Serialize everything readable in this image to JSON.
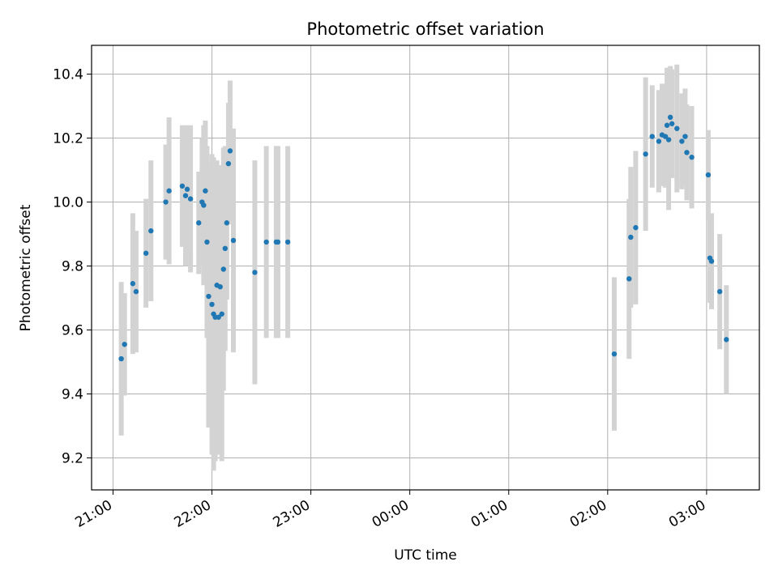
{
  "chart_data": {
    "type": "scatter",
    "title": "Photometric offset variation",
    "xlabel": "UTC time",
    "ylabel": "Photometric offset",
    "x_ticks": [
      "21:00",
      "22:00",
      "23:00",
      "00:00",
      "01:00",
      "02:00",
      "03:00"
    ],
    "y_ticks": [
      "9.2",
      "9.4",
      "9.6",
      "9.8",
      "10.0",
      "10.2",
      "10.4"
    ],
    "xlim": [
      "20:47",
      "03:32"
    ],
    "ylim": [
      9.1,
      10.49
    ],
    "grid": true,
    "colors": {
      "point": "#1f77b4",
      "errorbar": "#d3d3d3",
      "grid": "#b0b0b0"
    },
    "series": [
      {
        "x": [
          "21:05",
          "21:07",
          "21:12",
          "21:14",
          "21:20",
          "21:23",
          "21:32",
          "21:34",
          "21:42",
          "21:44",
          "21:45",
          "21:47",
          "21:52",
          "21:54",
          "21:55",
          "21:56",
          "21:57",
          "21:58",
          "22:00",
          "22:01",
          "22:02",
          "22:03",
          "22:04",
          "22:05",
          "22:06",
          "22:07",
          "22:08",
          "22:09",
          "22:10",
          "22:11",
          "22:13",
          "22:26",
          "22:33",
          "22:39",
          "22:40",
          "22:46",
          "02:04",
          "02:13",
          "02:14",
          "02:17",
          "02:23",
          "02:27",
          "02:31",
          "02:33",
          "02:35",
          "02:36",
          "02:37",
          "02:38",
          "02:39",
          "02:42",
          "02:45",
          "02:47",
          "02:48",
          "02:51",
          "03:01",
          "03:02",
          "03:03",
          "03:08",
          "03:12"
        ],
        "y": [
          9.51,
          9.555,
          9.745,
          9.72,
          9.84,
          9.91,
          10.0,
          10.035,
          10.05,
          10.02,
          10.04,
          10.01,
          9.935,
          10.0,
          9.99,
          10.035,
          9.875,
          9.705,
          9.68,
          9.65,
          9.64,
          9.74,
          9.64,
          9.735,
          9.65,
          9.79,
          9.855,
          9.935,
          10.12,
          10.16,
          9.88,
          9.78,
          9.875,
          9.875,
          9.875,
          9.875,
          9.525,
          9.76,
          9.89,
          9.92,
          10.15,
          10.205,
          10.19,
          10.21,
          10.205,
          10.24,
          10.195,
          10.265,
          10.245,
          10.23,
          10.19,
          10.205,
          10.155,
          10.14,
          10.085,
          9.825,
          9.815,
          9.72,
          9.57
        ],
        "err": [
          0.24,
          0.16,
          0.22,
          0.19,
          0.17,
          0.22,
          0.18,
          0.23,
          0.19,
          0.22,
          0.2,
          0.23,
          0.16,
          0.2,
          0.25,
          0.22,
          0.3,
          0.41,
          0.47,
          0.49,
          0.45,
          0.39,
          0.43,
          0.38,
          0.46,
          0.38,
          0.32,
          0.24,
          0.19,
          0.22,
          0.35,
          0.35,
          0.3,
          0.3,
          0.3,
          0.3,
          0.24,
          0.25,
          0.22,
          0.24,
          0.24,
          0.16,
          0.16,
          0.16,
          0.16,
          0.18,
          0.22,
          0.16,
          0.17,
          0.2,
          0.15,
          0.15,
          0.15,
          0.16,
          0.14,
          0.14,
          0.15,
          0.18,
          0.17
        ]
      }
    ]
  }
}
